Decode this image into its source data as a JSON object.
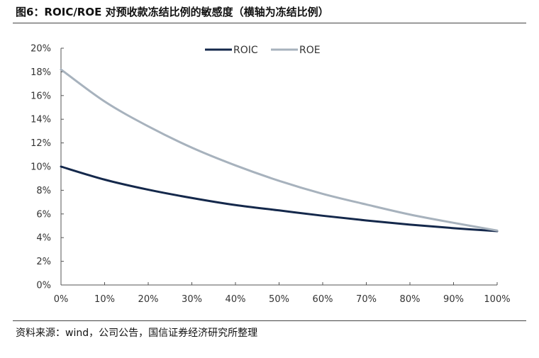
{
  "header": {
    "title": "图6：ROIC/ROE 对预收款冻结比例的敏感度（横轴为冻结比例）"
  },
  "footer": {
    "source": "资料来源：wind，公司公告，国信证券经济研究所整理"
  },
  "chart_data": {
    "type": "line",
    "title": "图6：ROIC/ROE 对预收款冻结比例的敏感度（横轴为冻结比例）",
    "x": [
      0,
      10,
      20,
      30,
      40,
      50,
      60,
      70,
      80,
      90,
      100
    ],
    "x_tick_labels": [
      "0%",
      "10%",
      "20%",
      "30%",
      "40%",
      "50%",
      "60%",
      "70%",
      "80%",
      "90%",
      "100%"
    ],
    "y_tick_labels": [
      "0%",
      "2%",
      "4%",
      "6%",
      "8%",
      "10%",
      "12%",
      "14%",
      "16%",
      "18%",
      "20%"
    ],
    "xlim": [
      0,
      100
    ],
    "ylim": [
      0,
      20
    ],
    "grid": false,
    "legend": "top-center",
    "series": [
      {
        "name": "ROIC",
        "color": "#14284b",
        "values": [
          10.0,
          8.9,
          8.05,
          7.35,
          6.75,
          6.3,
          5.85,
          5.45,
          5.1,
          4.8,
          4.55
        ]
      },
      {
        "name": "ROE",
        "color": "#a7b2bd",
        "values": [
          18.2,
          15.5,
          13.4,
          11.6,
          10.1,
          8.8,
          7.7,
          6.8,
          5.95,
          5.25,
          4.6
        ]
      }
    ]
  }
}
